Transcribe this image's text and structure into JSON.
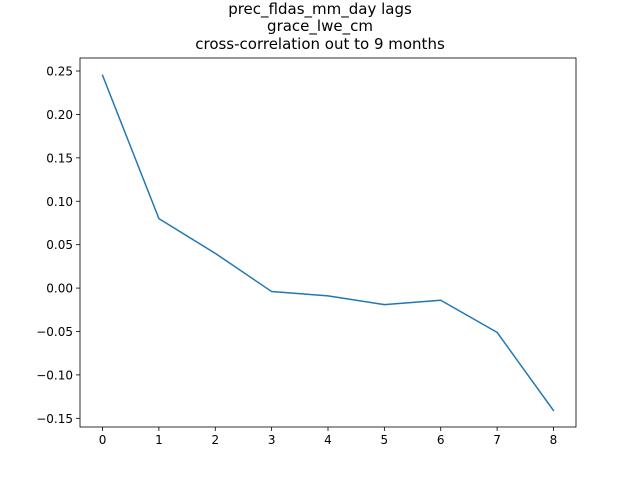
{
  "chart_data": {
    "type": "line",
    "title_lines": [
      "prec_fldas_mm_day lags",
      "grace_lwe_cm",
      "cross-correlation out to 9 months"
    ],
    "xlabel": "",
    "ylabel": "",
    "x": [
      0,
      1,
      2,
      3,
      4,
      5,
      6,
      7,
      8
    ],
    "series": [
      {
        "values": [
          0.245,
          0.08,
          0.04,
          -0.004,
          -0.009,
          -0.019,
          -0.014,
          -0.051,
          -0.141
        ],
        "color": "#1f77b4"
      }
    ],
    "xlim": [
      -0.4,
      8.4
    ],
    "ylim": [
      -0.16,
      0.265
    ],
    "xticks": [
      0,
      1,
      2,
      3,
      4,
      5,
      6,
      7,
      8
    ],
    "xtick_labels": [
      "0",
      "1",
      "2",
      "3",
      "4",
      "5",
      "6",
      "7",
      "8"
    ],
    "yticks": [
      -0.15,
      -0.1,
      -0.05,
      0.0,
      0.05,
      0.1,
      0.15,
      0.2,
      0.25
    ],
    "ytick_labels": [
      "−0.15",
      "−0.10",
      "−0.05",
      "0.00",
      "0.05",
      "0.10",
      "0.15",
      "0.20",
      "0.25"
    ],
    "grid": false,
    "legend": "none"
  }
}
